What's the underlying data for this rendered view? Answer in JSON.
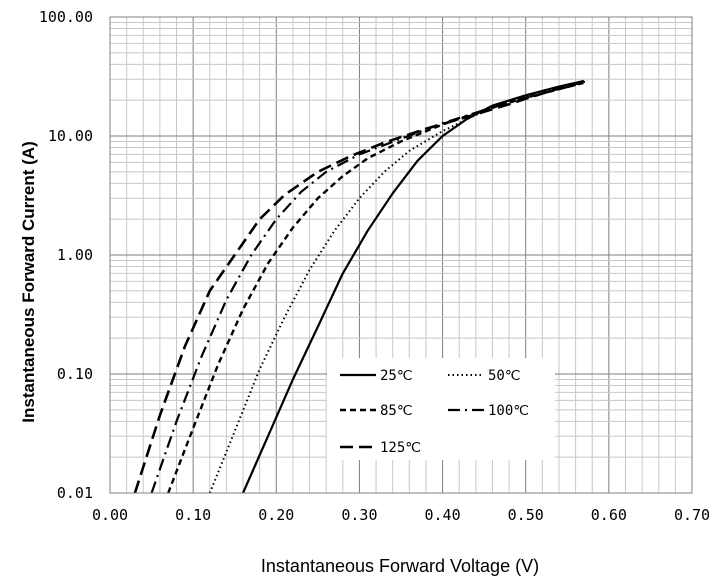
{
  "chart_data": {
    "type": "line",
    "xlabel": "Instantaneous Forward Voltage (V)",
    "ylabel": "Instantaneous Forward Current (A)",
    "xlim": [
      0.0,
      0.7
    ],
    "ylim": [
      0.01,
      100.0
    ],
    "yscale": "log",
    "grid": true,
    "x_ticks": [
      "0.00",
      "0.10",
      "0.20",
      "0.30",
      "0.40",
      "0.50",
      "0.60",
      "0.70"
    ],
    "y_ticks": [
      "0.01",
      "0.10",
      "1.00",
      "10.00",
      "100.00"
    ],
    "legend_position": "bottom-right inside",
    "series": [
      {
        "name": "25℃",
        "style": "solid",
        "x": [
          0.16,
          0.19,
          0.22,
          0.25,
          0.28,
          0.31,
          0.34,
          0.37,
          0.4,
          0.43,
          0.46,
          0.5,
          0.54,
          0.57
        ],
        "y": [
          0.01,
          0.03,
          0.09,
          0.25,
          0.7,
          1.6,
          3.3,
          6.2,
          10.0,
          14.0,
          18.0,
          22.0,
          26.0,
          29.0
        ]
      },
      {
        "name": "50℃",
        "style": "dotted",
        "x": [
          0.12,
          0.15,
          0.18,
          0.21,
          0.24,
          0.27,
          0.3,
          0.33,
          0.36,
          0.4,
          0.44,
          0.48,
          0.52,
          0.575
        ],
        "y": [
          0.01,
          0.033,
          0.11,
          0.3,
          0.75,
          1.6,
          3.0,
          5.0,
          7.5,
          11.0,
          15.0,
          19.5,
          24.0,
          29.0
        ]
      },
      {
        "name": "85℃",
        "style": "dash",
        "x": [
          0.07,
          0.1,
          0.13,
          0.16,
          0.19,
          0.22,
          0.25,
          0.28,
          0.31,
          0.35,
          0.4,
          0.45,
          0.5,
          0.57
        ],
        "y": [
          0.01,
          0.035,
          0.12,
          0.35,
          0.85,
          1.7,
          3.0,
          4.6,
          6.5,
          9.0,
          12.5,
          16.5,
          21.0,
          28.0
        ]
      },
      {
        "name": "100℃",
        "style": "dashdot",
        "x": [
          0.05,
          0.08,
          0.11,
          0.14,
          0.17,
          0.2,
          0.23,
          0.26,
          0.3,
          0.35,
          0.4,
          0.45,
          0.5,
          0.57
        ],
        "y": [
          0.01,
          0.04,
          0.14,
          0.42,
          1.0,
          2.0,
          3.4,
          5.0,
          7.0,
          9.5,
          12.8,
          16.5,
          21.0,
          28.0
        ]
      },
      {
        "name": "125℃",
        "style": "longdash",
        "x": [
          0.03,
          0.06,
          0.09,
          0.12,
          0.15,
          0.18,
          0.21,
          0.25,
          0.29,
          0.33,
          0.38,
          0.43,
          0.48,
          0.53,
          0.565
        ],
        "y": [
          0.01,
          0.045,
          0.17,
          0.5,
          1.0,
          2.0,
          3.2,
          5.0,
          6.8,
          8.8,
          11.5,
          14.5,
          18.5,
          24.0,
          28.0
        ]
      }
    ]
  }
}
